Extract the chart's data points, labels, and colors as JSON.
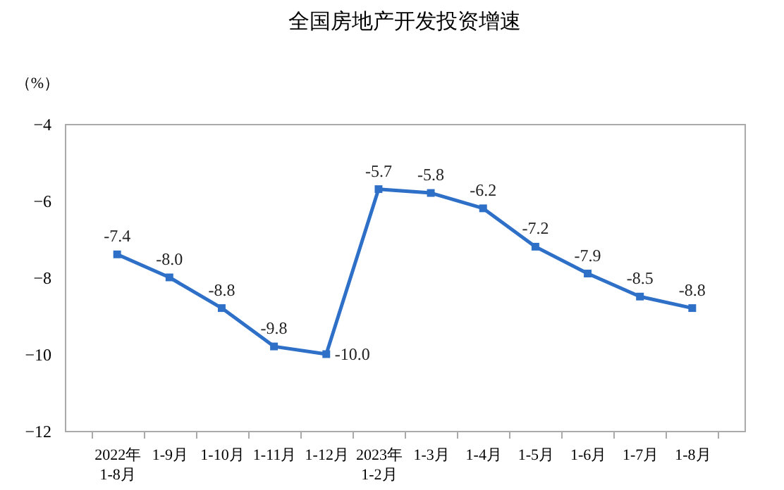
{
  "chart_data": {
    "type": "line",
    "title": "全国房地产开发投资增速",
    "ylabel": "（%）",
    "categories": [
      "2022年\n1-8月",
      "1-9月",
      "1-10月",
      "1-11月",
      "1-12月",
      "2023年\n1-2月",
      "1-3月",
      "1-4月",
      "1-5月",
      "1-6月",
      "1-7月",
      "1-8月"
    ],
    "series": [
      {
        "color": "#2e6fc7",
        "values": [
          -7.4,
          -8.0,
          -8.8,
          -9.8,
          -10.0,
          -5.7,
          -5.8,
          -6.2,
          -7.2,
          -7.9,
          -8.5,
          -8.8
        ],
        "value_labels": [
          "-7.4",
          "-8.0",
          "-8.8",
          "-9.8",
          "-10.0",
          "-5.7",
          "-5.8",
          "-6.2",
          "-7.2",
          "-7.9",
          "-8.5",
          "-8.8"
        ]
      }
    ],
    "ylim": [
      -12,
      -4
    ],
    "yticks": [
      -12,
      -10,
      -8,
      -6,
      -4
    ],
    "marker": "square",
    "line_style": "solid"
  }
}
